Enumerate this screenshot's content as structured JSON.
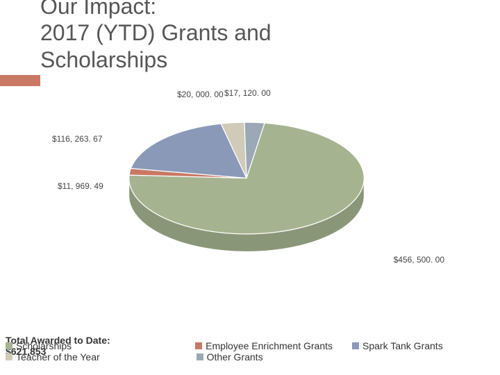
{
  "title": {
    "line1": "Our Impact:",
    "line2": "2017 (YTD) Grants and",
    "line3": "Scholarships",
    "color": "#565656",
    "font_size": 32
  },
  "accent_bar_color": "#c87864",
  "chart": {
    "type": "pie-3d",
    "background_color": "#ffffff",
    "slices": [
      {
        "label": "$456, 500. 00",
        "value": 456500.0,
        "color": "#a6b390",
        "side_color": "#8a9678"
      },
      {
        "label": "$11, 969. 49",
        "value": 11969.49,
        "color": "#c87864",
        "side_color": "#a86050"
      },
      {
        "label": "$116, 263. 67",
        "value": 116263.67,
        "color": "#8a99b8",
        "side_color": "#6f7c99"
      },
      {
        "label": "$20, 000. 00",
        "value": 20000.0,
        "color": "#d0cbb8",
        "side_color": "#b0ac9a"
      },
      {
        "label": "$17, 120. 00",
        "value": 17120.0,
        "color": "#9ba8b5",
        "side_color": "#7e8a96"
      }
    ],
    "label_fontsize": 12,
    "label_color": "#444444"
  },
  "legend": {
    "items": [
      {
        "label": "Scholarships",
        "color": "#a6b390"
      },
      {
        "label": "Employee Enrichment Grants",
        "color": "#c87864"
      },
      {
        "label": "Spark Tank Grants",
        "color": "#8a99b8"
      },
      {
        "label": "Teacher of the Year",
        "color": "#d0cbb8"
      },
      {
        "label": "Other Grants",
        "color": "#9ba8b5"
      }
    ],
    "fontsize": 14,
    "color": "#333333"
  },
  "total": {
    "heading": "Total Awarded to Date:",
    "amount": "$621,853",
    "fontsize": 14,
    "color": "#333333"
  }
}
